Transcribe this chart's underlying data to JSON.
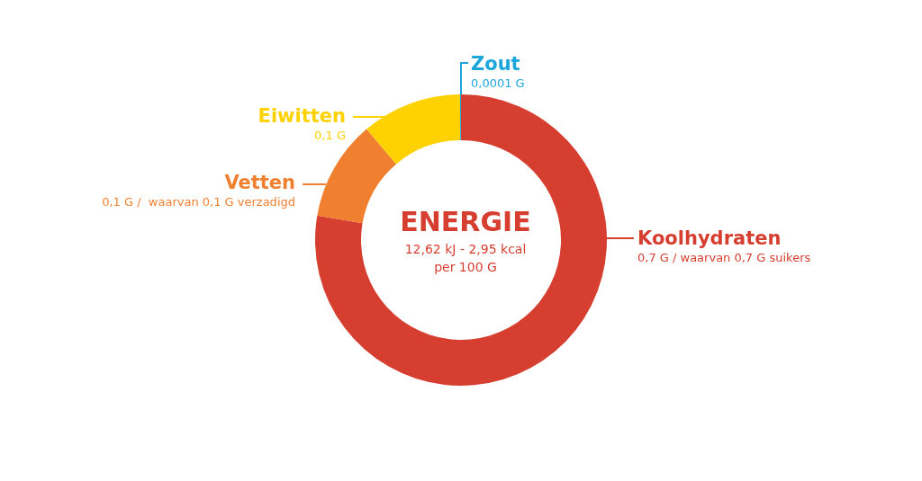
{
  "chart_data": {
    "type": "donut",
    "title": "ENERGIE",
    "subtitle": "12,62 kJ - 2,95 kcal\nper 100 G",
    "categories": [
      "Koolhydraten",
      "Vetten",
      "Eiwitten",
      "Zout"
    ],
    "values": [
      0.7,
      0.1,
      0.1,
      0.0001
    ],
    "colors": [
      "#d63e30",
      "#f07f30",
      "#fdd200",
      "#1ca6dc"
    ],
    "value_labels": [
      "0,7 G / waarvan 0,7 G suikers",
      "0,1 G /  waarvan 0,1 G verzadigd",
      "0,1 G",
      "0,0001 G"
    ]
  }
}
